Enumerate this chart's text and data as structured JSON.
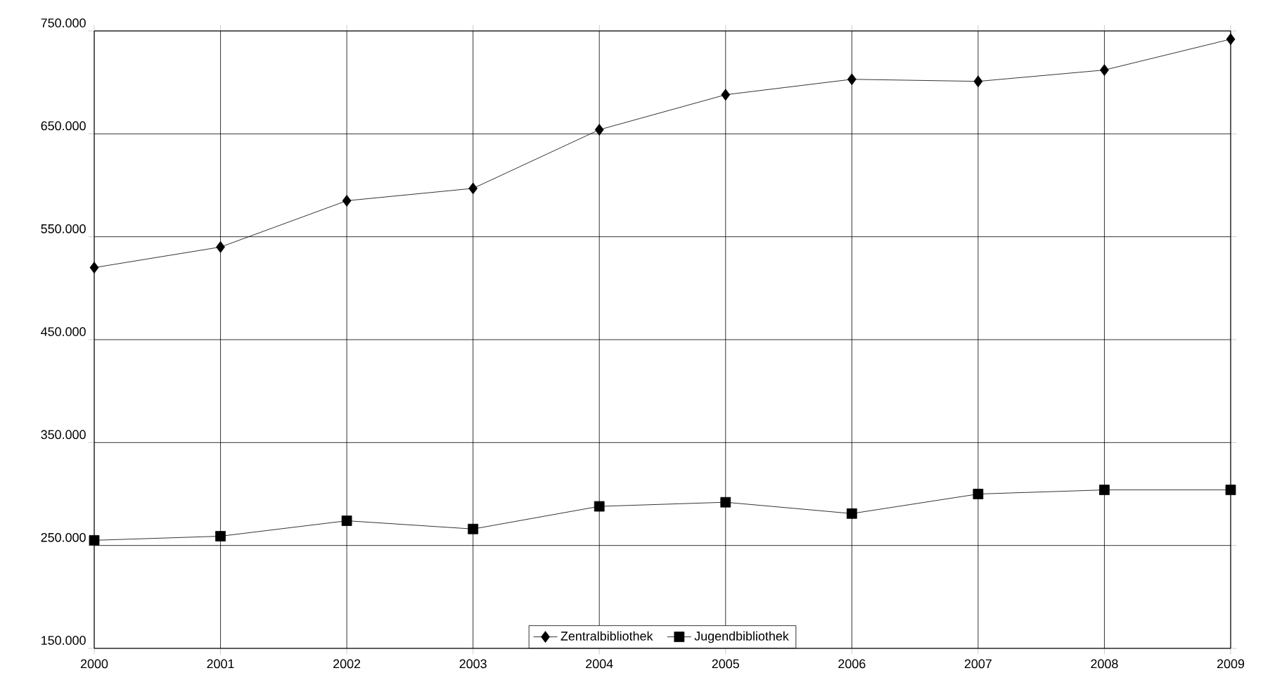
{
  "chart_data": {
    "type": "line",
    "x": [
      2000,
      2001,
      2002,
      2003,
      2004,
      2005,
      2006,
      2007,
      2008,
      2009
    ],
    "series": [
      {
        "name": "Zentralbibliothek",
        "color": "#000000",
        "marker": "diamond",
        "values": [
          520000,
          540000,
          585000,
          597000,
          654000,
          688000,
          703000,
          701000,
          712000,
          742000
        ]
      },
      {
        "name": "Jugendbibliothek",
        "color": "#000000",
        "marker": "square",
        "values": [
          255000,
          259000,
          274000,
          266000,
          288000,
          292000,
          281000,
          300000,
          304000,
          304000
        ]
      }
    ],
    "xlim": [
      2000,
      2009
    ],
    "xticks": [
      2000,
      2001,
      2002,
      2003,
      2004,
      2005,
      2006,
      2007,
      2008,
      2009
    ],
    "ylim": [
      150000,
      750000
    ],
    "yticks": [
      {
        "value": 150000,
        "label": "150.000"
      },
      {
        "value": 250000,
        "label": "250.000"
      },
      {
        "value": 350000,
        "label": "350.000"
      },
      {
        "value": 450000,
        "label": "450.000"
      },
      {
        "value": 550000,
        "label": "550.000"
      },
      {
        "value": 650000,
        "label": "650.000"
      },
      {
        "value": 750000,
        "label": "750.000"
      }
    ],
    "grid": true,
    "legend": "bottom",
    "line_style": "solid"
  }
}
